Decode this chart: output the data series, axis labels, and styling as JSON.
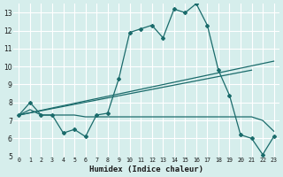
{
  "xlabel": "Humidex (Indice chaleur)",
  "xlim": [
    -0.5,
    23.5
  ],
  "ylim": [
    5,
    13.5
  ],
  "xticks": [
    0,
    1,
    2,
    3,
    4,
    5,
    6,
    7,
    8,
    9,
    10,
    11,
    12,
    13,
    14,
    15,
    16,
    17,
    18,
    19,
    20,
    21,
    22,
    23
  ],
  "yticks": [
    5,
    6,
    7,
    8,
    9,
    10,
    11,
    12,
    13
  ],
  "bg_color": "#d6eeec",
  "line_color": "#1a6b6b",
  "grid_color": "#c0dedd",
  "main_x": [
    0,
    1,
    2,
    3,
    4,
    5,
    6,
    7,
    8,
    9,
    10,
    11,
    12,
    13,
    14,
    15,
    16,
    17,
    18,
    19,
    20,
    21,
    22,
    23
  ],
  "main_y": [
    7.3,
    8.0,
    7.3,
    7.3,
    6.3,
    6.5,
    6.1,
    7.3,
    7.4,
    9.3,
    11.9,
    12.1,
    12.3,
    11.6,
    13.2,
    13.0,
    13.5,
    12.3,
    9.8,
    8.4,
    6.2,
    6.0,
    5.1,
    6.1
  ],
  "trend1_x": [
    0,
    23
  ],
  "trend1_y": [
    7.3,
    10.3
  ],
  "trend2_x": [
    0,
    21
  ],
  "trend2_y": [
    7.3,
    9.8
  ],
  "flat_x": [
    0,
    1,
    2,
    3,
    4,
    5,
    6,
    7,
    8,
    9,
    10,
    11,
    12,
    13,
    14,
    15,
    16,
    17,
    18,
    19,
    20,
    21,
    22,
    23
  ],
  "flat_y": [
    7.3,
    7.6,
    7.3,
    7.3,
    7.3,
    7.3,
    7.2,
    7.2,
    7.2,
    7.2,
    7.2,
    7.2,
    7.2,
    7.2,
    7.2,
    7.2,
    7.2,
    7.2,
    7.2,
    7.2,
    7.2,
    7.2,
    7.0,
    6.4
  ]
}
